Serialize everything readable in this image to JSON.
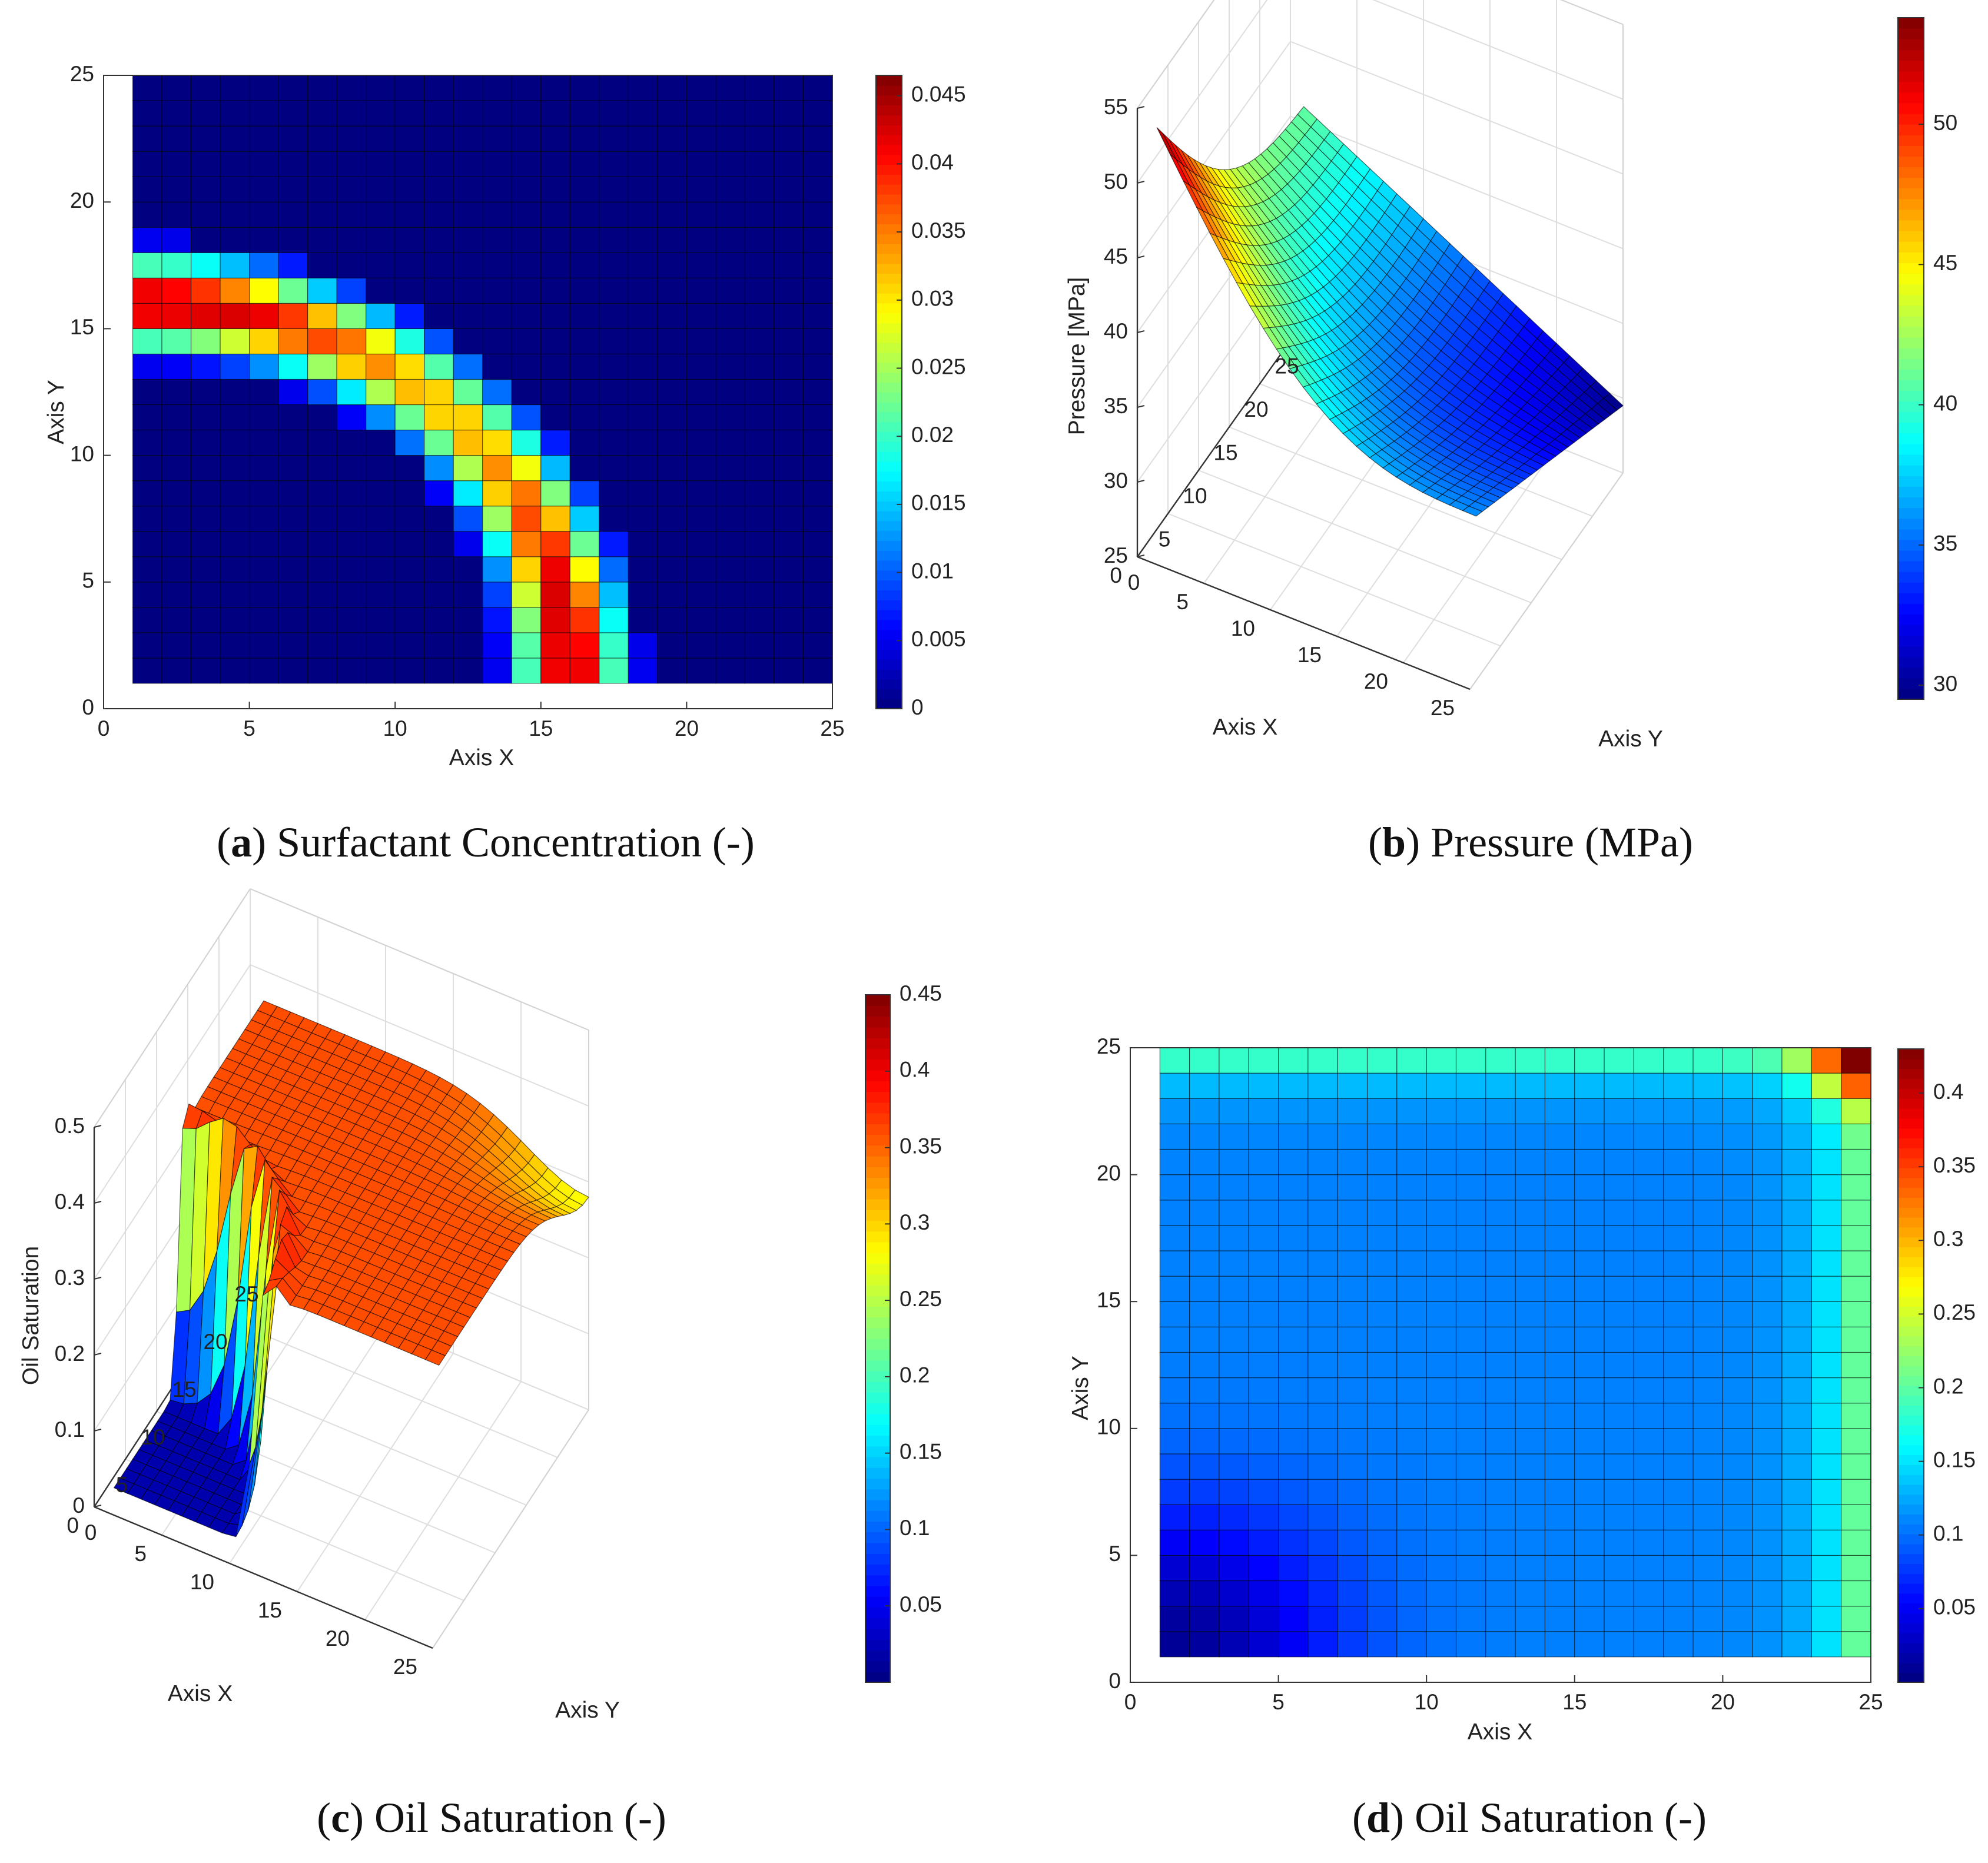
{
  "figure": {
    "panel_count": 4
  },
  "chart_data": [
    {
      "panel": "a",
      "type": "heatmap",
      "caption_label": "a",
      "caption_text": "Surfactant Concentration (-)",
      "xlabel": "Axis X",
      "ylabel": "Axis Y",
      "xlim": [
        0,
        25
      ],
      "ylim": [
        0,
        25
      ],
      "xticks": [
        "0",
        "5",
        "10",
        "15",
        "20",
        "25"
      ],
      "yticks": [
        "0",
        "5",
        "10",
        "15",
        "20",
        "25"
      ],
      "grid_cells": [
        24,
        24
      ],
      "colorbar": {
        "range": [
          0,
          0.0465
        ],
        "ticks": [
          "0",
          "0.005",
          "0.01",
          "0.015",
          "0.02",
          "0.025",
          "0.03",
          "0.035",
          "0.04",
          "0.045"
        ],
        "tick_values": [
          0,
          0.005,
          0.01,
          0.015,
          0.02,
          0.025,
          0.03,
          0.035,
          0.04,
          0.045
        ]
      },
      "description": "Curved band of surfactant: horizontal at Y≈15-19 for X≈1-10, bending downward to vertical at X≈14-19 down to Y≈1; peak ≈0.045 at inlet (X=1, Y≈15-17) and outlet (X≈15-17, Y≈1)"
    },
    {
      "panel": "b",
      "type": "surface3d",
      "caption_label": "b",
      "caption_text": "Pressure (MPa)",
      "xlabel": "Axis X",
      "ylabel": "Axis Y",
      "zlabel": "Pressure [MPa]",
      "xlim": [
        0,
        25
      ],
      "ylim": [
        0,
        25
      ],
      "zlim": [
        25,
        55
      ],
      "xticks": [
        "0",
        "5",
        "10",
        "15",
        "20",
        "25"
      ],
      "yticks": [
        "0",
        "5",
        "10",
        "15",
        "20",
        "25"
      ],
      "zticks": [
        "25",
        "30",
        "35",
        "40",
        "45",
        "50",
        "55"
      ],
      "colorbar": {
        "range": [
          29.5,
          53.8
        ],
        "ticks": [
          "30",
          "35",
          "40",
          "45",
          "50"
        ],
        "tick_values": [
          30,
          35,
          40,
          45,
          50
        ]
      },
      "corner_values": {
        "x1_y1": 53.5,
        "x25_y1": 36,
        "x1_y25": 41,
        "x25_y25": 29.5
      }
    },
    {
      "panel": "c",
      "type": "surface3d",
      "caption_label": "c",
      "caption_text": "Oil Saturation (-)",
      "xlabel": "Axis X",
      "ylabel": "Axis Y",
      "zlabel": "Oil Saturation",
      "xlim": [
        0,
        25
      ],
      "ylim": [
        0,
        25
      ],
      "zlim": [
        0,
        0.5
      ],
      "xticks": [
        "0",
        "5",
        "10",
        "15",
        "20",
        "25"
      ],
      "yticks": [
        "0",
        "5",
        "10",
        "15",
        "20",
        "25"
      ],
      "zticks": [
        "0",
        "0.1",
        "0.2",
        "0.3",
        "0.4",
        "0.5"
      ],
      "colorbar": {
        "range": [
          0,
          0.45
        ],
        "ticks": [
          "0.05",
          "0.1",
          "0.15",
          "0.2",
          "0.25",
          "0.3",
          "0.35",
          "0.4",
          "0.45"
        ],
        "tick_values": [
          0.05,
          0.1,
          0.15,
          0.2,
          0.25,
          0.3,
          0.35,
          0.4,
          0.45
        ]
      },
      "description": "Swept region near injector (low X, low Y) at ≈0.02; oil bank ridge ≈0.45 at the displacement front; unswept plateau ≈0.36; dip to ≈0.28 at far corner"
    },
    {
      "panel": "d",
      "type": "heatmap",
      "caption_label": "d",
      "caption_text": "Oil Saturation (-)",
      "xlabel": "Axis X",
      "ylabel": "Axis Y",
      "xlim": [
        0,
        25
      ],
      "ylim": [
        0,
        25
      ],
      "xticks": [
        "0",
        "5",
        "10",
        "15",
        "20",
        "25"
      ],
      "yticks": [
        "0",
        "5",
        "10",
        "15",
        "20",
        "25"
      ],
      "grid_cells": [
        24,
        24
      ],
      "colorbar": {
        "range": [
          0,
          0.43
        ],
        "ticks": [
          "0.05",
          "0.1",
          "0.15",
          "0.2",
          "0.25",
          "0.3",
          "0.35",
          "0.4"
        ],
        "tick_values": [
          0.05,
          0.1,
          0.15,
          0.2,
          0.25,
          0.3,
          0.35,
          0.4
        ]
      },
      "description": "Saturation ≈0.01 near origin, ≈0.1 across most of domain, rising to ≈0.18-0.2 along X=24 edge and Y=24 edge, with ≈0.35 near the top-right corner"
    }
  ]
}
